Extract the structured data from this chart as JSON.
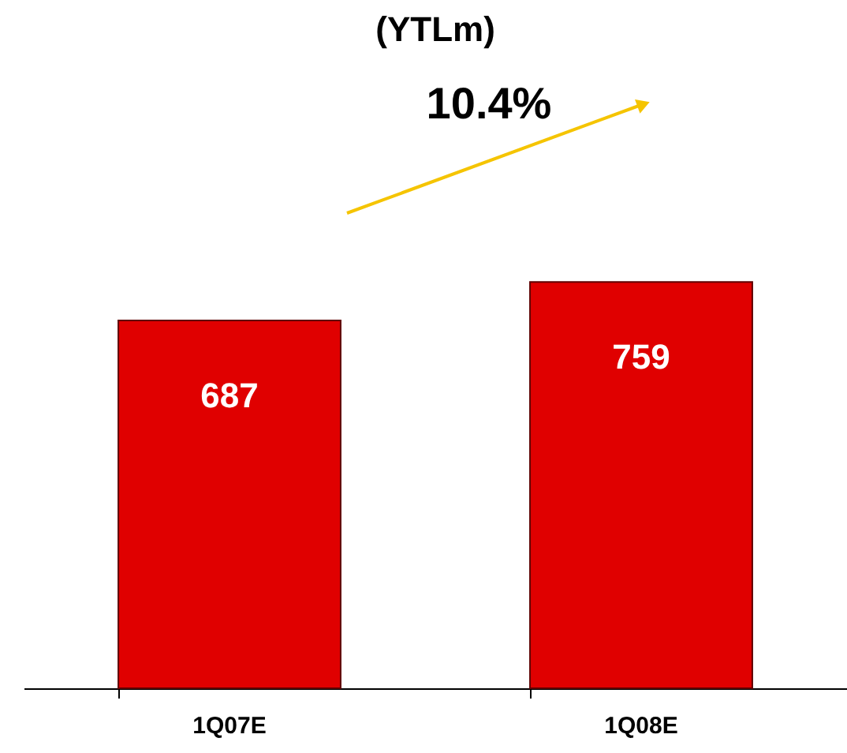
{
  "chart_data": {
    "type": "bar",
    "title": "(YTLm)",
    "annotations": [
      "10.4%"
    ],
    "categories": [
      "1Q07E",
      "1Q08E"
    ],
    "values": [
      687,
      759
    ],
    "color": "#e00000",
    "data_labels": true
  }
}
